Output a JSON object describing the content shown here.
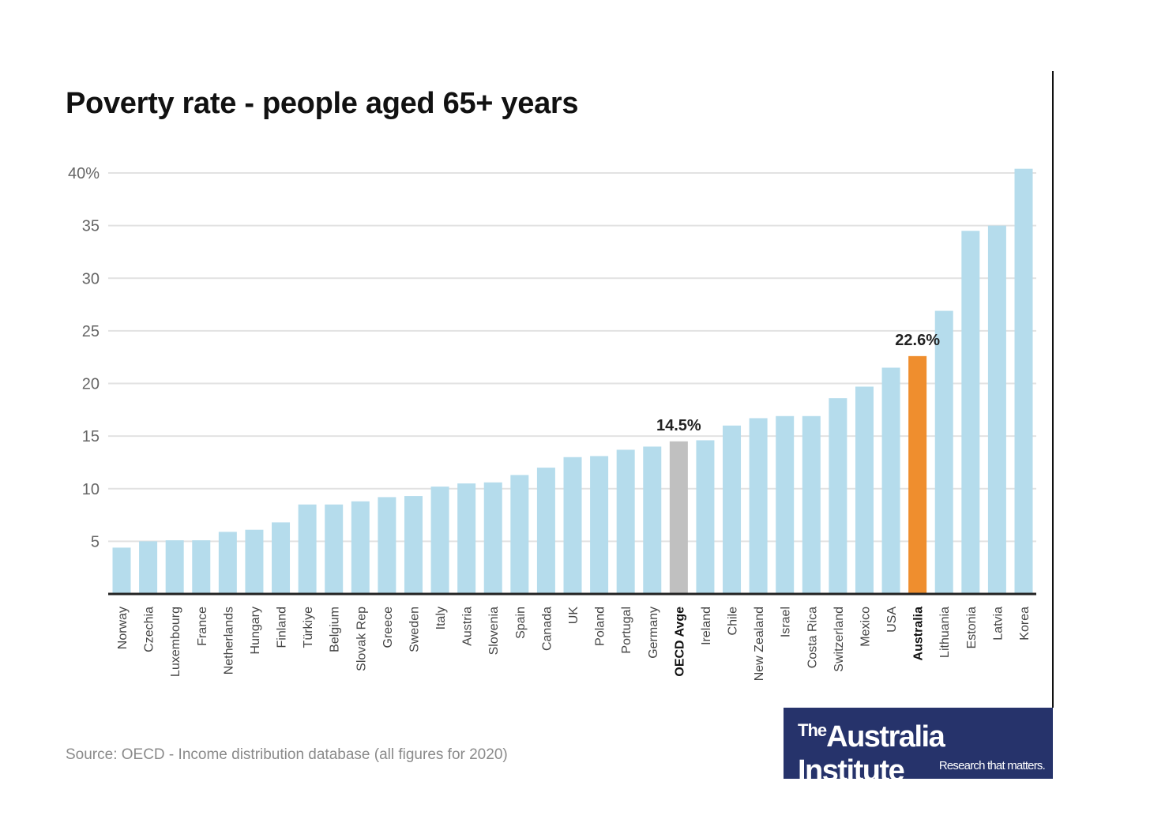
{
  "chart_data": {
    "type": "bar",
    "title": "Poverty rate - people aged 65+ years",
    "xlabel": "",
    "ylabel": "",
    "ylim": [
      0,
      40
    ],
    "yticks": [
      5,
      10,
      15,
      20,
      25,
      30,
      35,
      40
    ],
    "ytick_labels": [
      "5",
      "10",
      "15",
      "20",
      "25",
      "30",
      "35",
      "40%"
    ],
    "grid": true,
    "categories": [
      "Norway",
      "Czechia",
      "Luxembourg",
      "France",
      "Netherlands",
      "Hungary",
      "Finland",
      "Türkiye",
      "Belgium",
      "Slovak Rep",
      "Greece",
      "Sweden",
      "Italy",
      "Austria",
      "Slovenia",
      "Spain",
      "Canada",
      "UK",
      "Poland",
      "Portugal",
      "Germany",
      "OECD Avge",
      "Ireland",
      "Chile",
      "New Zealand",
      "Israel",
      "Costa Rica",
      "Switzerland",
      "Mexico",
      "USA",
      "Australia",
      "Lithuania",
      "Estonia",
      "Latvia",
      "Korea"
    ],
    "values": [
      4.4,
      5.0,
      5.1,
      5.1,
      5.9,
      6.1,
      6.8,
      8.5,
      8.5,
      8.8,
      9.2,
      9.3,
      10.2,
      10.5,
      10.6,
      11.3,
      12.0,
      13.0,
      13.1,
      13.7,
      14.0,
      14.5,
      14.6,
      16.0,
      16.7,
      16.9,
      16.9,
      18.6,
      19.7,
      21.5,
      22.6,
      26.9,
      34.5,
      35.0,
      40.4
    ],
    "highlights": {
      "OECD Avge": "#c0c0c0",
      "Australia": "#ef8e2e"
    },
    "bar_color": "#b5dcec",
    "annotations": [
      {
        "category": "OECD Avge",
        "text": "14.5%"
      },
      {
        "category": "Australia",
        "text": "22.6%"
      }
    ],
    "bold_labels": [
      "OECD Avge",
      "Australia"
    ]
  },
  "source": "Source: OECD - Income distribution database (all figures for 2020)",
  "logo": {
    "the": "The",
    "name": "Australia Institute",
    "tagline": "Research that matters."
  }
}
